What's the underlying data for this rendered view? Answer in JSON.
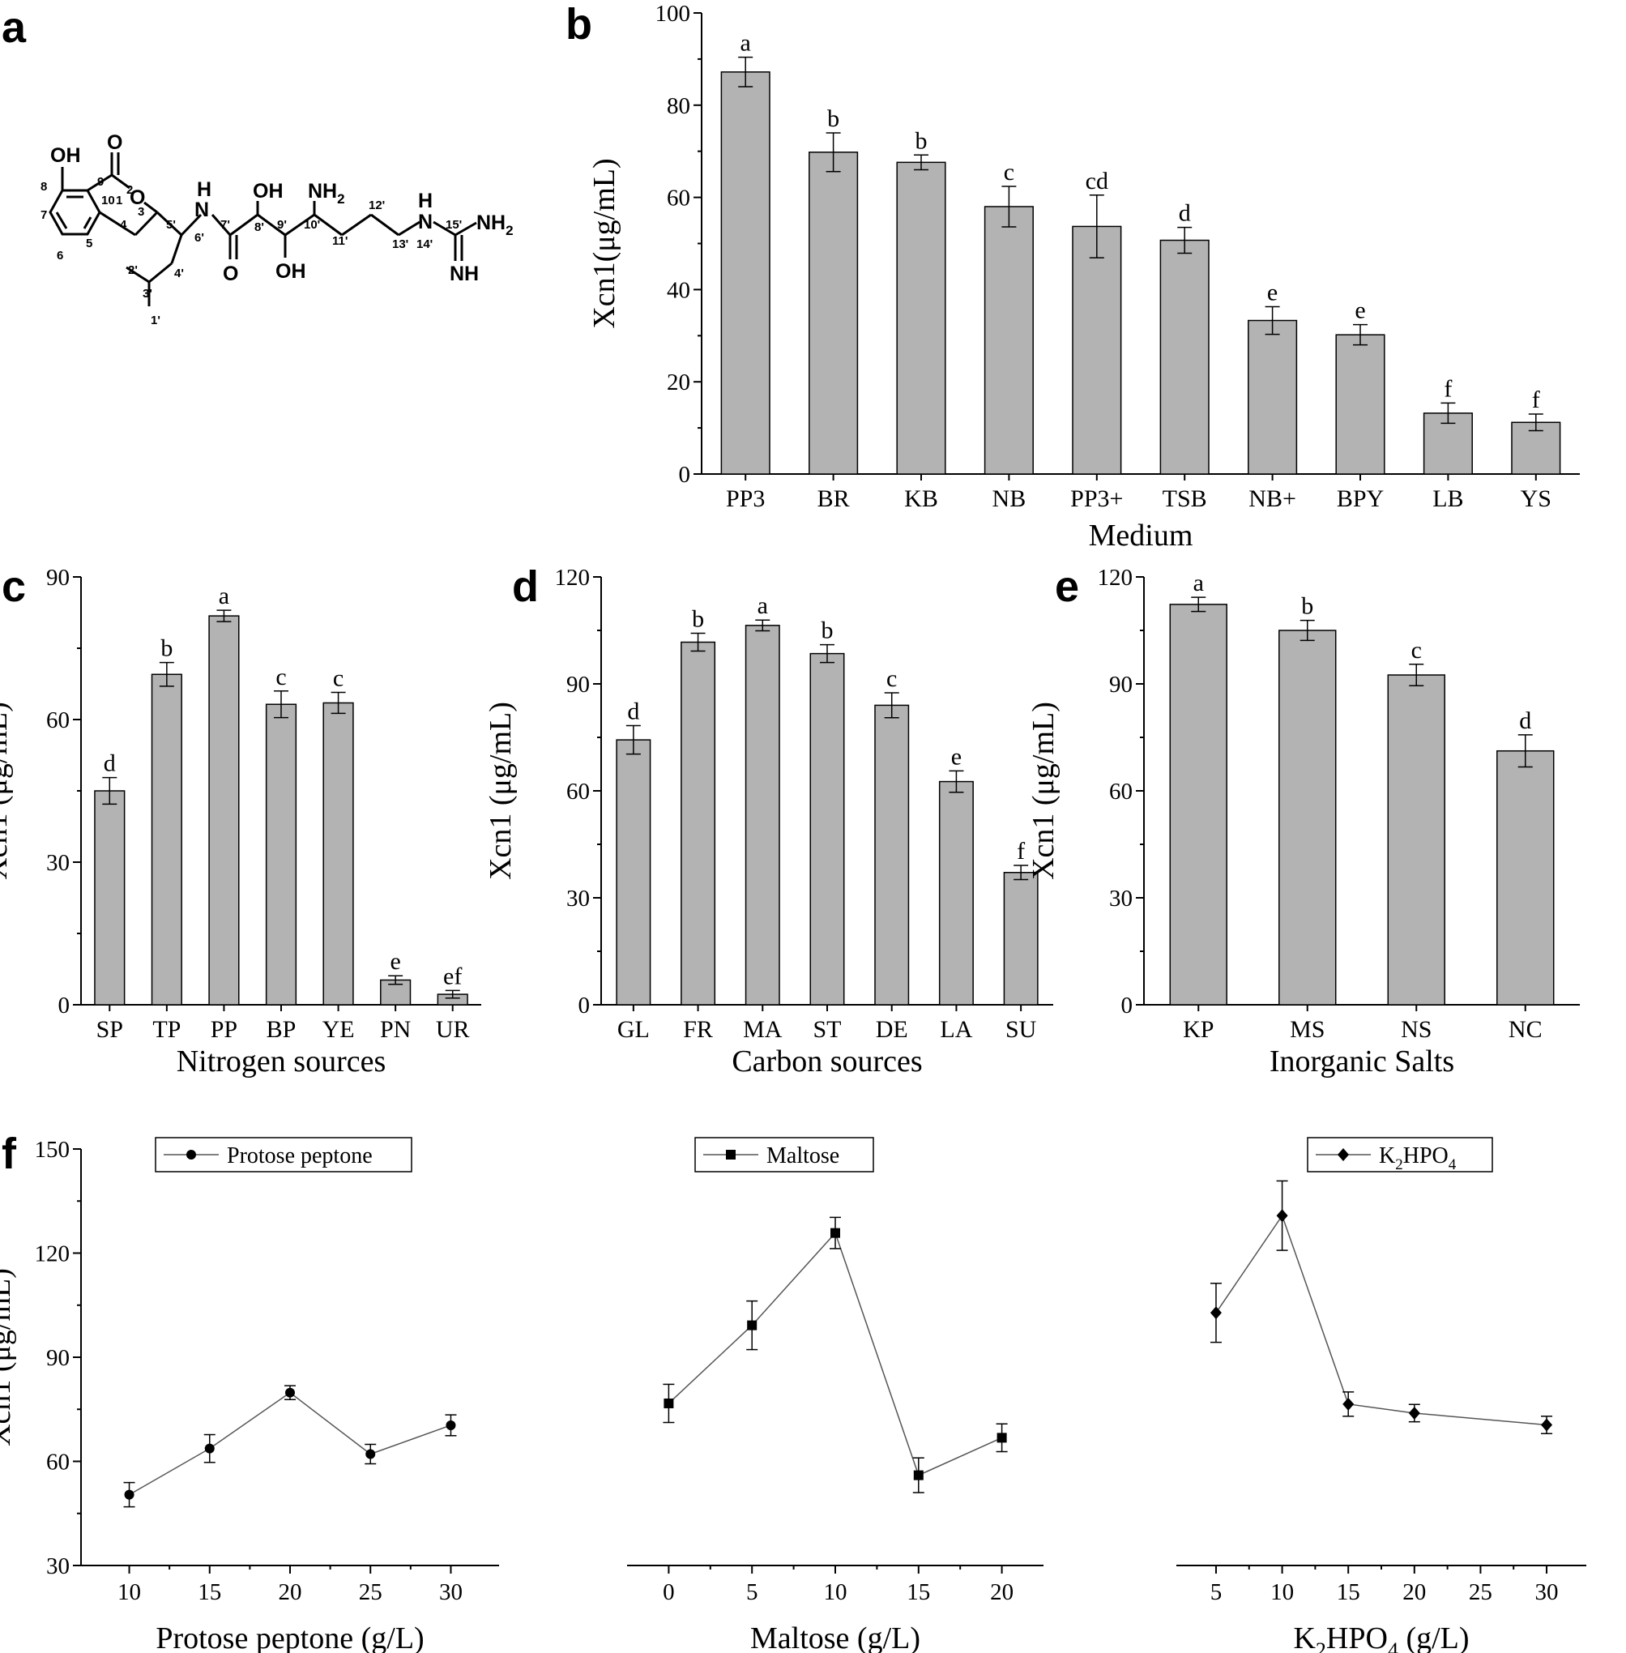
{
  "panels": {
    "a": "a",
    "b": "b",
    "c": "c",
    "d": "d",
    "e": "e",
    "f": "f"
  },
  "structure": {
    "atoms": [
      "OH",
      "O",
      "O",
      "H",
      "N",
      "OH",
      "NH2",
      "H",
      "N",
      "NH2",
      "O",
      "OH",
      "NH"
    ],
    "numbers": [
      "1",
      "2",
      "3",
      "4",
      "5",
      "6",
      "7",
      "8",
      "9",
      "10",
      "1'",
      "2'",
      "3'",
      "4'",
      "5'",
      "6'",
      "7'",
      "8'",
      "9'",
      "10'",
      "11'",
      "12'",
      "13'",
      "14'",
      "15'"
    ]
  },
  "chart_data": [
    {
      "panel": "b",
      "type": "bar",
      "xlabel": "Medium",
      "ylabel": "Xcn1(μg/mL)",
      "ylim": [
        0,
        100
      ],
      "yticks": [
        0,
        20,
        40,
        60,
        80,
        100
      ],
      "categories": [
        "PP3",
        "BR",
        "KB",
        "NB",
        "PP3+",
        "TSB",
        "NB+",
        "BPY",
        "LB",
        "YS"
      ],
      "values": [
        87.2,
        69.8,
        67.6,
        58.0,
        53.7,
        50.7,
        33.3,
        30.2,
        13.2,
        11.2
      ],
      "errors": [
        3.2,
        4.2,
        1.6,
        4.4,
        6.8,
        2.8,
        3.0,
        2.2,
        2.2,
        1.8
      ],
      "letters": [
        "a",
        "b",
        "b",
        "c",
        "cd",
        "d",
        "e",
        "e",
        "f",
        "f"
      ]
    },
    {
      "panel": "c",
      "type": "bar",
      "xlabel": "Nitrogen sources",
      "ylabel": "Xcn1 (μg/mL)",
      "ylim": [
        0,
        90
      ],
      "yticks": [
        0,
        30,
        60,
        90
      ],
      "categories": [
        "SP",
        "TP",
        "PP",
        "BP",
        "YE",
        "PN",
        "UR"
      ],
      "values": [
        45.0,
        69.5,
        81.8,
        63.2,
        63.5,
        5.2,
        2.2
      ],
      "errors": [
        2.8,
        2.5,
        1.2,
        2.8,
        2.2,
        0.9,
        0.8
      ],
      "letters": [
        "d",
        "b",
        "a",
        "c",
        "c",
        "e",
        "ef"
      ]
    },
    {
      "panel": "d",
      "type": "bar",
      "xlabel": "Carbon sources",
      "ylabel": "Xcn1 (μg/mL)",
      "ylim": [
        0,
        120
      ],
      "yticks": [
        0,
        30,
        60,
        90,
        120
      ],
      "categories": [
        "GL",
        "FR",
        "MA",
        "ST",
        "DE",
        "LA",
        "SU"
      ],
      "values": [
        74.3,
        101.7,
        106.4,
        98.5,
        84.0,
        62.6,
        37.1
      ],
      "errors": [
        4.0,
        2.5,
        1.5,
        2.5,
        3.5,
        3.0,
        2.0
      ],
      "letters": [
        "d",
        "b",
        "a",
        "b",
        "c",
        "e",
        "f"
      ]
    },
    {
      "panel": "e",
      "type": "bar",
      "xlabel": "Inorganic Salts",
      "ylabel": "Xcn1 (μg/mL)",
      "ylim": [
        0,
        120
      ],
      "yticks": [
        0,
        30,
        60,
        90,
        120
      ],
      "categories": [
        "KP",
        "MS",
        "NS",
        "NC"
      ],
      "values": [
        112.3,
        105.0,
        92.5,
        71.2
      ],
      "errors": [
        2.0,
        2.8,
        3.0,
        4.5
      ],
      "letters": [
        "a",
        "b",
        "c",
        "d"
      ]
    },
    {
      "panel": "f",
      "type": "line",
      "xlabel": "Protose peptone (g/L)",
      "ylabel": "Xcn1 (μg/mL)",
      "ylim": [
        30,
        150
      ],
      "yticks": [
        30,
        60,
        90,
        120,
        150
      ],
      "xlim": [
        7,
        33
      ],
      "xticks": [
        10,
        15,
        20,
        25,
        30
      ],
      "series": [
        {
          "name": "Protose peptone",
          "marker": "circle",
          "x": [
            10,
            15,
            20,
            25,
            30
          ],
          "y": [
            50.4,
            63.7,
            79.8,
            62.1,
            70.4
          ],
          "errors": [
            3.5,
            4.0,
            2.0,
            2.8,
            3.0
          ]
        }
      ]
    },
    {
      "panel": "f",
      "type": "line",
      "xlabel": "Maltose (g/L)",
      "ylabel": "",
      "ylim": [
        30,
        150
      ],
      "yticks": [],
      "xlim": [
        -2.5,
        22.5
      ],
      "xticks": [
        0,
        5,
        10,
        15,
        20
      ],
      "series": [
        {
          "name": "Maltose",
          "marker": "square",
          "x": [
            0,
            5,
            10,
            15,
            20
          ],
          "y": [
            76.7,
            99.2,
            125.8,
            56.0,
            66.8
          ],
          "errors": [
            5.5,
            7.0,
            4.5,
            5.0,
            4.0
          ]
        }
      ]
    },
    {
      "panel": "f",
      "type": "line",
      "xlabel": "K2HPO4 (g/L)",
      "ylabel": "",
      "ylim": [
        30,
        150
      ],
      "yticks": [],
      "xlim": [
        2,
        33
      ],
      "xticks": [
        5,
        10,
        15,
        20,
        25,
        30
      ],
      "series": [
        {
          "name": "K2HPO4",
          "marker": "diamond",
          "x": [
            5,
            10,
            15,
            20,
            30
          ],
          "y": [
            102.8,
            130.8,
            76.5,
            73.9,
            70.5
          ],
          "errors": [
            8.5,
            10.0,
            3.5,
            2.5,
            2.5
          ]
        }
      ]
    }
  ]
}
